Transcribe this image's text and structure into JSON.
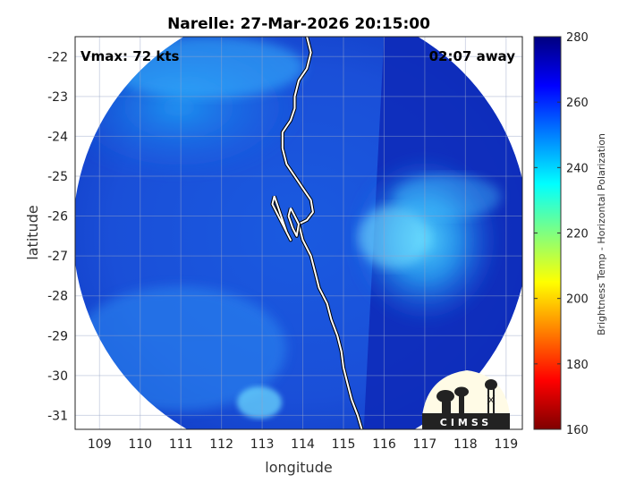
{
  "title": "Narelle: 27-Mar-2026 20:15:00",
  "vmax_label": "Vmax: 72 kts",
  "time_away_label": "02:07 away",
  "logo_text": "CIMSS",
  "map": {
    "xlabel": "longitude",
    "ylabel": "latitude",
    "xlim": [
      108.4,
      119.4
    ],
    "ylim": [
      -31.35,
      -21.5
    ],
    "xticks": [
      109,
      110,
      111,
      112,
      113,
      114,
      115,
      116,
      117,
      118,
      119
    ],
    "yticks": [
      -22,
      -23,
      -24,
      -25,
      -26,
      -27,
      -28,
      -29,
      -30,
      -31
    ],
    "xtick_labels": [
      "109",
      "110",
      "111",
      "112",
      "113",
      "114",
      "115",
      "116",
      "117",
      "118",
      "119"
    ],
    "ytick_labels": [
      "-22",
      "-23",
      "-24",
      "-25",
      "-26",
      "-27",
      "-28",
      "-29",
      "-30",
      "-31"
    ],
    "grid": true,
    "swath_center": [
      113.95,
      -26.4
    ],
    "swath_radius_deg_lon": 5.6,
    "warm_region_center": [
      117.0,
      -26.6
    ],
    "swath_edge_line_lon": [
      116.0,
      115.5
    ]
  },
  "coastline": [
    [
      114.1,
      -21.5
    ],
    [
      114.2,
      -21.9
    ],
    [
      114.1,
      -22.3
    ],
    [
      113.9,
      -22.6
    ],
    [
      113.8,
      -23.0
    ],
    [
      113.8,
      -23.3
    ],
    [
      113.7,
      -23.6
    ],
    [
      113.5,
      -23.9
    ],
    [
      113.5,
      -24.3
    ],
    [
      113.6,
      -24.7
    ],
    [
      113.8,
      -25.0
    ],
    [
      114.0,
      -25.3
    ],
    [
      114.2,
      -25.6
    ],
    [
      114.25,
      -25.9
    ],
    [
      114.1,
      -26.1
    ],
    [
      113.9,
      -26.2
    ],
    [
      114.0,
      -26.6
    ],
    [
      114.2,
      -27.0
    ],
    [
      114.3,
      -27.4
    ],
    [
      114.4,
      -27.8
    ],
    [
      114.6,
      -28.2
    ],
    [
      114.7,
      -28.6
    ],
    [
      114.85,
      -29.0
    ],
    [
      114.95,
      -29.4
    ],
    [
      115.0,
      -29.8
    ],
    [
      115.1,
      -30.2
    ],
    [
      115.2,
      -30.6
    ],
    [
      115.35,
      -31.0
    ],
    [
      115.45,
      -31.35
    ]
  ],
  "shark_bay": [
    [
      113.3,
      -25.5
    ],
    [
      113.4,
      -25.8
    ],
    [
      113.5,
      -26.1
    ],
    [
      113.6,
      -26.4
    ],
    [
      113.7,
      -26.6
    ],
    [
      113.55,
      -26.3
    ],
    [
      113.4,
      -26.0
    ],
    [
      113.25,
      -25.7
    ],
    [
      113.3,
      -25.5
    ]
  ],
  "peron_peninsula": [
    [
      113.7,
      -25.8
    ],
    [
      113.8,
      -26.0
    ],
    [
      113.9,
      -26.2
    ],
    [
      113.85,
      -26.5
    ],
    [
      113.75,
      -26.3
    ],
    [
      113.65,
      -26.0
    ],
    [
      113.7,
      -25.8
    ]
  ],
  "colorbar": {
    "label": "Brightness Temp - Horizontal Polarization",
    "vmin": 160,
    "vmax": 280,
    "ticks": [
      160,
      180,
      200,
      220,
      240,
      260,
      280
    ],
    "tick_labels": [
      "160",
      "180",
      "200",
      "220",
      "240",
      "260",
      "280"
    ],
    "colormap": "jet",
    "stops": [
      "#7f0000",
      "#ff0000",
      "#ff8000",
      "#ffff00",
      "#80ff80",
      "#00ffff",
      "#0080ff",
      "#0000ff",
      "#00007f"
    ]
  }
}
